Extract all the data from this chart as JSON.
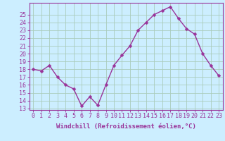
{
  "x": [
    0,
    1,
    2,
    3,
    4,
    5,
    6,
    7,
    8,
    9,
    10,
    11,
    12,
    13,
    14,
    15,
    16,
    17,
    18,
    19,
    20,
    21,
    22,
    23
  ],
  "y": [
    18.0,
    17.8,
    18.5,
    17.0,
    16.0,
    15.5,
    13.3,
    14.5,
    13.4,
    16.0,
    18.5,
    19.8,
    21.0,
    23.0,
    24.0,
    25.0,
    25.5,
    26.0,
    24.5,
    23.2,
    22.5,
    20.0,
    18.5,
    17.2
  ],
  "line_color": "#993399",
  "marker_color": "#993399",
  "bg_color": "#cceeff",
  "grid_color": "#aaccbb",
  "xlabel": "Windchill (Refroidissement éolien,°C)",
  "ylabel_ticks": [
    13,
    14,
    15,
    16,
    17,
    18,
    19,
    20,
    21,
    22,
    23,
    24,
    25
  ],
  "ylim": [
    12.8,
    26.5
  ],
  "xlim": [
    -0.5,
    23.5
  ],
  "xticks": [
    0,
    1,
    2,
    3,
    4,
    5,
    6,
    7,
    8,
    9,
    10,
    11,
    12,
    13,
    14,
    15,
    16,
    17,
    18,
    19,
    20,
    21,
    22,
    23
  ],
  "xlabel_fontsize": 6.5,
  "tick_fontsize": 6.0,
  "marker_size": 2.5,
  "line_width": 1.0
}
